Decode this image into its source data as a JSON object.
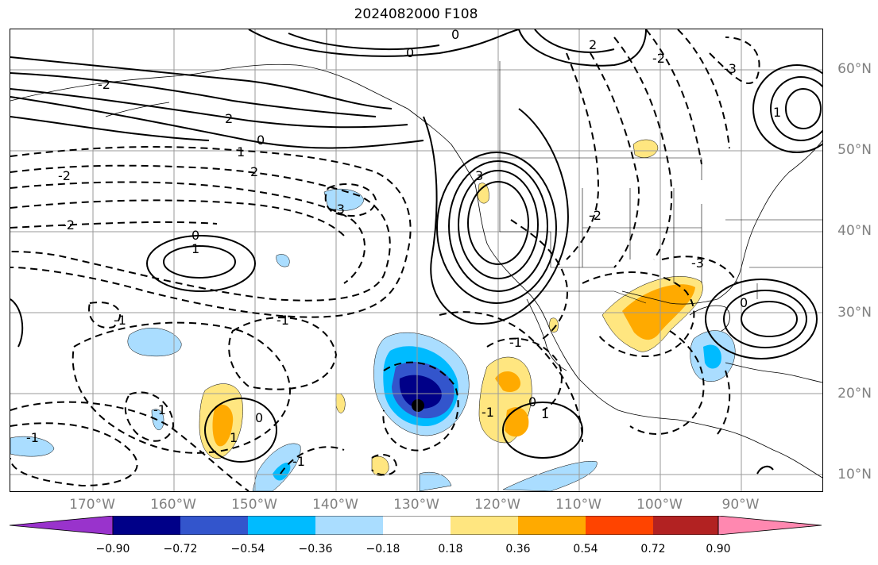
{
  "title": "2024082000 F108",
  "lat_labels": [
    "60°N",
    "50°N",
    "40°N",
    "30°N",
    "20°N",
    "10°N"
  ],
  "lon_labels": [
    "170°W",
    "160°W",
    "150°W",
    "140°W",
    "130°W",
    "120°W",
    "110°W",
    "100°W",
    "90°W"
  ],
  "colorbar": {
    "colors": [
      "#9933cc",
      "#000088",
      "#3355cc",
      "#00bbff",
      "#aaddff",
      "#ffffff",
      "#ffe680",
      "#ffaa00",
      "#ff4400",
      "#b22222",
      "#ff88b0"
    ],
    "tick_labels": [
      "−0.90",
      "−0.72",
      "−0.54",
      "−0.36",
      "−0.18",
      "0.18",
      "0.36",
      "0.54",
      "0.72",
      "0.90"
    ]
  },
  "contour_labels": [
    "-2",
    "-2",
    "-2",
    "-1",
    "-1",
    "-1",
    "0",
    "0",
    "0",
    "0",
    "1",
    "1",
    "1",
    "2",
    "2",
    "2",
    "3",
    "-3",
    "-3",
    "-2",
    "-1",
    "1",
    "0",
    "0",
    "1",
    "-1",
    "-2",
    "-3",
    "-1",
    "0",
    "-1"
  ]
}
